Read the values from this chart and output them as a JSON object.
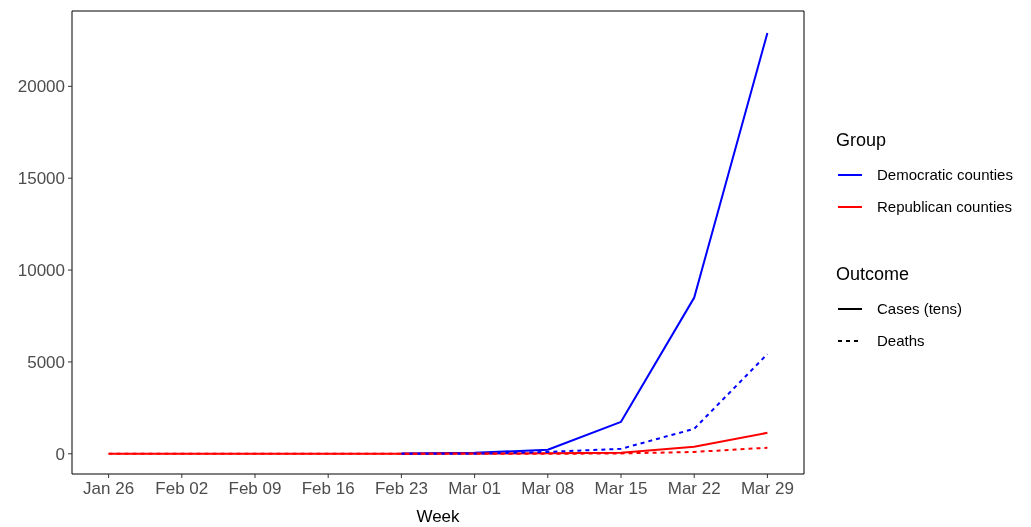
{
  "chart_data": {
    "type": "line",
    "xlabel": "Week",
    "legend_title": "Group",
    "legend": "right",
    "categories": [
      "Jan 26",
      "Feb 02",
      "Feb 09",
      "Feb 16",
      "Feb 23",
      "Mar 01",
      "Mar 08",
      "Mar 15",
      "Mar 22",
      "Mar 29"
    ],
    "ylim": [
      -1100,
      24100
    ],
    "yticks": [
      0,
      5000,
      10000,
      15000,
      20000
    ],
    "grid": false,
    "series": [
      {
        "name": "Democratic counties",
        "color": "#0000ff",
        "line_style": "solid",
        "values": [
          null,
          null,
          null,
          null,
          10,
          50,
          220,
          1740,
          8500,
          22900
        ]
      },
      {
        "name": "Republican counties",
        "color": "#ff0000",
        "line_style": "solid",
        "values": [
          0,
          0,
          0,
          0,
          0,
          10,
          30,
          60,
          380,
          1140
        ]
      },
      {
        "color": "#0000ff",
        "line_style": "dashed",
        "values": [
          null,
          null,
          null,
          null,
          0,
          0,
          100,
          270,
          1360,
          5430
        ]
      },
      {
        "color": "#ff0000",
        "line_style": "dashed",
        "values": [
          0,
          0,
          0,
          0,
          0,
          0,
          0,
          20,
          100,
          330
        ]
      }
    ],
    "annotations": [
      "Outcome",
      "Cases (tens)",
      "Deaths"
    ]
  }
}
